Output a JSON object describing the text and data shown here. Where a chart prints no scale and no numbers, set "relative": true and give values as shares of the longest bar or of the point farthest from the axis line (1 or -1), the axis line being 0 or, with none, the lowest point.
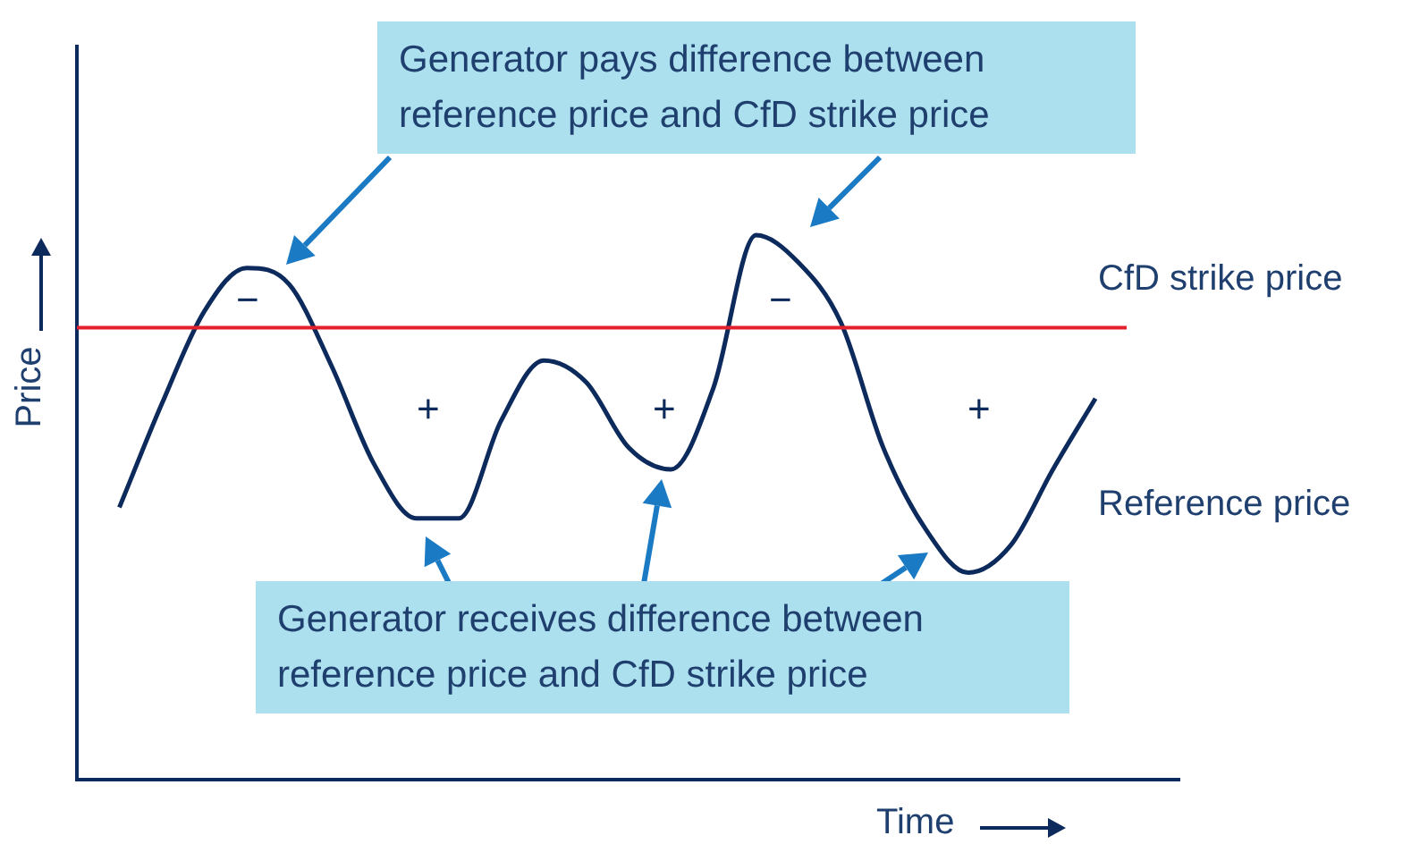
{
  "chart_data": {
    "type": "line",
    "relative": true,
    "xlabel": "Time",
    "ylabel": "Price",
    "categories": [
      null,
      null,
      null,
      null,
      null,
      null,
      null,
      null,
      null,
      null,
      null,
      null,
      null,
      null,
      null,
      null,
      null,
      null,
      null,
      null,
      null,
      null,
      null,
      null,
      null,
      null,
      null
    ],
    "series": [
      {
        "name": "Reference price",
        "color": "#0d2a5c",
        "values": [
          null,
          0.5,
          0.69,
          0.86,
          0.94,
          0.91,
          0.76,
          0.58,
          0.48,
          0.48,
          0.66,
          0.77,
          0.73,
          0.61,
          0.57,
          0.72,
          1,
          0.95,
          0.84,
          0.61,
          0.46,
          0.38,
          0.43,
          0.57,
          0.7,
          null,
          null
        ]
      }
    ],
    "ref_lines": [
      {
        "axis": "y",
        "value": 0.83,
        "label": "CfD strike price",
        "color": "#e3202b"
      }
    ],
    "annotations": [
      "Generator pays difference between reference price and CfD strike price",
      "Generator receives difference between reference price and CfD strike price",
      "−",
      "−",
      "+",
      "+",
      "+"
    ],
    "legend": false,
    "marker": "none",
    "line_style": "solid"
  }
}
